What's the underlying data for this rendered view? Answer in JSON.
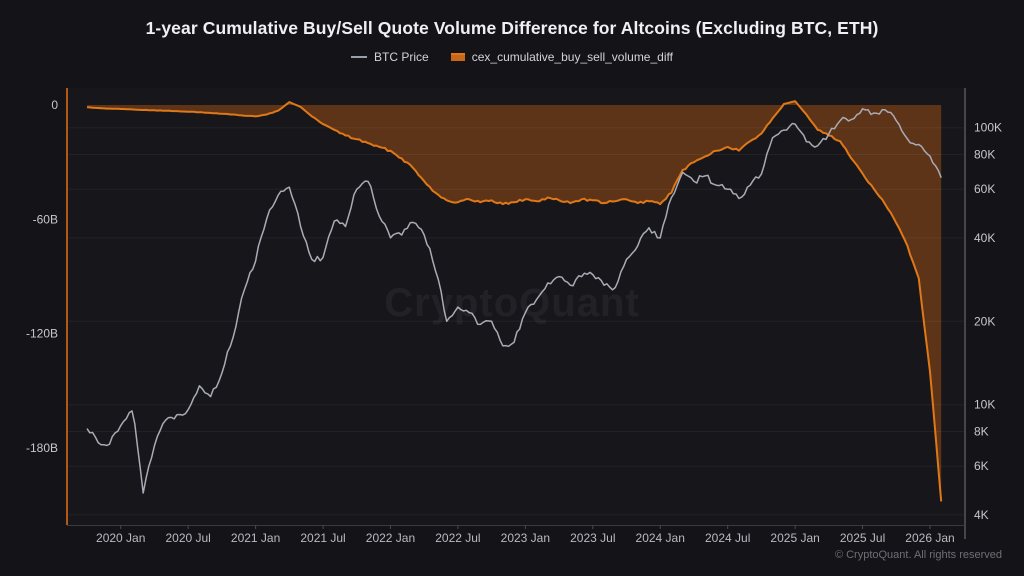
{
  "title": "1-year Cumulative Buy/Sell Quote Volume Difference for Altcoins (Excluding BTC, ETH)",
  "legend": [
    {
      "label": "BTC Price",
      "color": "#9aa0aa",
      "type": "line"
    },
    {
      "label": "cex_cumulative_buy_sell_volume_diff",
      "color": "#e07818",
      "type": "area"
    }
  ],
  "watermark": "CryptoQuant",
  "footer": "© CryptoQuant. All rights reserved",
  "colors": {
    "background": "#141418",
    "plot_background": "#17171b",
    "btc_line": "#a9abb5",
    "diff_line": "#e07818",
    "diff_fill": "#5e3418",
    "left_axis_line": "#b45912",
    "right_axis_line": "#55565e",
    "bottom_axis_line": "#3a3b41",
    "gridline": "rgba(255,255,255,0.05)",
    "axis_text": "#c6c7cc"
  },
  "chart_data": {
    "type": "area+line",
    "title": "1-year Cumulative Buy/Sell Quote Volume Difference for Altcoins (Excluding BTC, ETH)",
    "x_start_month": "2019-10",
    "x_tick_labels": [
      "2020 Jan",
      "2020 Jul",
      "2021 Jan",
      "2021 Jul",
      "2022 Jan",
      "2022 Jul",
      "2023 Jan",
      "2023 Jul",
      "2024 Jan",
      "2024 Jul",
      "2025 Jan",
      "2025 Jul",
      "2026 Jan"
    ],
    "left_axis": {
      "title": "",
      "unit": "billion USD",
      "scale": "linear",
      "tick_labels": [
        "0",
        "-60B",
        "-120B",
        "-180B"
      ],
      "tick_values": [
        0,
        -60,
        -120,
        -180
      ],
      "range": [
        -220,
        9
      ]
    },
    "right_axis": {
      "title": "",
      "unit": "K USD",
      "scale": "log",
      "tick_labels": [
        "100K",
        "80K",
        "60K",
        "40K",
        "20K",
        "10K",
        "8K",
        "6K",
        "4K"
      ],
      "tick_values": [
        100,
        80,
        60,
        40,
        20,
        10,
        8,
        6,
        4
      ],
      "range": [
        3.7,
        139
      ]
    },
    "grid": "horizontal-right-axis-ticks",
    "legend_position": "top-center",
    "series": [
      {
        "name": "BTC Price",
        "axis": "right",
        "unit": "K USD",
        "style": "line",
        "monthly_values": [
          8.2,
          7.3,
          7.2,
          8.4,
          9.5,
          4.8,
          7.1,
          8.8,
          9.2,
          9.6,
          11.7,
          10.7,
          13,
          17.5,
          26,
          33,
          47,
          57,
          61,
          44,
          33.5,
          34,
          46,
          44,
          60,
          64,
          48,
          40,
          41,
          45.5,
          41,
          30.5,
          20,
          22.5,
          21.5,
          19.5,
          20,
          16.3,
          16.8,
          21.5,
          24,
          27.5,
          29,
          27,
          29,
          29.5,
          27,
          26.5,
          33.5,
          37.5,
          43.5,
          40,
          56,
          69,
          64,
          67,
          62,
          60,
          55.5,
          62,
          68,
          92,
          98,
          103,
          89,
          86,
          95,
          106,
          107,
          117,
          113,
          116,
          106,
          91,
          87,
          79,
          66
        ]
      },
      {
        "name": "cex_cumulative_buy_sell_volume_diff",
        "axis": "left",
        "unit": "billion USD",
        "style": "area-from-zero",
        "monthly_values": [
          -1.2,
          -1.6,
          -1.9,
          -2.1,
          -2.3,
          -2.6,
          -2.8,
          -3,
          -3.2,
          -3.5,
          -3.8,
          -4.2,
          -4.6,
          -5,
          -5.6,
          -6,
          -5,
          -3,
          1.5,
          -1,
          -6,
          -10,
          -13,
          -16,
          -18,
          -20,
          -22,
          -24,
          -28,
          -33,
          -40,
          -46,
          -50,
          -51,
          -49.5,
          -51,
          -50,
          -52,
          -51,
          -49.5,
          -50.5,
          -48.5,
          -50,
          -51.5,
          -49.5,
          -50,
          -51.5,
          -50.5,
          -49.5,
          -51.5,
          -50.5,
          -52,
          -46,
          -34,
          -30,
          -27,
          -24,
          -22,
          -24,
          -19,
          -15,
          -7,
          0.5,
          2,
          -5,
          -13,
          -16,
          -19,
          -28,
          -36,
          -44,
          -52,
          -62,
          -74,
          -91,
          -140,
          -208
        ]
      }
    ]
  }
}
